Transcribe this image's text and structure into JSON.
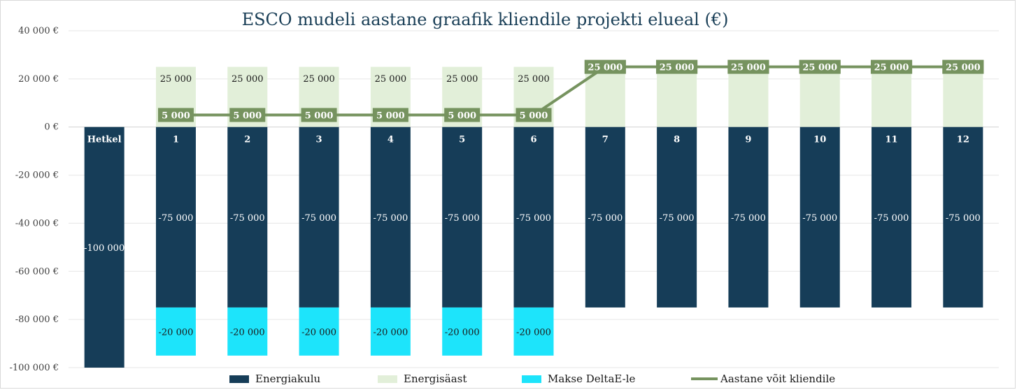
{
  "chart_data": {
    "type": "bar",
    "title": "ESCO mudeli aastane graafik kliendile projekti elueal (€)",
    "categories": [
      "Hetkel",
      "1",
      "2",
      "3",
      "4",
      "5",
      "6",
      "7",
      "8",
      "9",
      "10",
      "11",
      "12"
    ],
    "ylim": [
      -100000,
      40000
    ],
    "yticks": [
      40000,
      20000,
      0,
      -20000,
      -40000,
      -60000,
      -80000,
      -100000
    ],
    "ytick_labels": [
      "40 000 €",
      "20 000 €",
      "0 €",
      "-20 000 €",
      "-40 000 €",
      "-60 000 €",
      "-80 000 €",
      "-100 000 €"
    ],
    "grid": true,
    "legend_position": "bottom",
    "series": [
      {
        "name": "Energiakulu",
        "kind": "bar",
        "color": "#163d58",
        "values": [
          -100000,
          -75000,
          -75000,
          -75000,
          -75000,
          -75000,
          -75000,
          -75000,
          -75000,
          -75000,
          -75000,
          -75000,
          -75000
        ],
        "labels": [
          "-100 000",
          "-75 000",
          "-75 000",
          "-75 000",
          "-75 000",
          "-75 000",
          "-75 000",
          "-75 000",
          "-75 000",
          "-75 000",
          "-75 000",
          "-75 000",
          "-75 000"
        ]
      },
      {
        "name": "Energisäast",
        "kind": "bar",
        "color": "#e2efd9",
        "values": [
          null,
          25000,
          25000,
          25000,
          25000,
          25000,
          25000,
          25000,
          25000,
          25000,
          25000,
          25000,
          25000
        ],
        "labels": [
          null,
          "25 000",
          "25 000",
          "25 000",
          "25 000",
          "25 000",
          "25 000",
          null,
          null,
          null,
          null,
          null,
          null
        ]
      },
      {
        "name": "Makse DeltaE-le",
        "kind": "bar",
        "color": "#1de4fb",
        "values": [
          null,
          -20000,
          -20000,
          -20000,
          -20000,
          -20000,
          -20000,
          null,
          null,
          null,
          null,
          null,
          null
        ],
        "labels": [
          null,
          "-20 000",
          "-20 000",
          "-20 000",
          "-20 000",
          "-20 000",
          "-20 000",
          null,
          null,
          null,
          null,
          null,
          null
        ]
      },
      {
        "name": "Aastane võit kliendile",
        "kind": "line",
        "color": "#76935f",
        "values": [
          null,
          5000,
          5000,
          5000,
          5000,
          5000,
          5000,
          25000,
          25000,
          25000,
          25000,
          25000,
          25000
        ],
        "labels": [
          null,
          "5 000",
          "5 000",
          "5 000",
          "5 000",
          "5 000",
          "5 000",
          "25 000",
          "25 000",
          "25 000",
          "25 000",
          "25 000",
          "25 000"
        ]
      }
    ]
  }
}
